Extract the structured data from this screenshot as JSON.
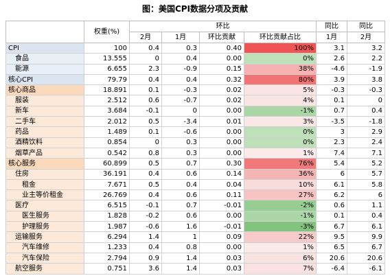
{
  "title": "图：美国CPI数据分项及贡献",
  "table": {
    "header": [
      [
        "权重(%)",
        "环比",
        "同比",
        "同比"
      ],
      [
        "2月",
        "1月",
        "环比贡献",
        "环比贡献占比",
        "1月",
        "2月"
      ]
    ],
    "rows": [
      [
        "CPI",
        "100",
        "0.4",
        "0.3",
        "0.40",
        "100%",
        "3.1",
        "3.2"
      ],
      [
        "食品",
        "13.555",
        "0",
        "0.4",
        "0.00",
        "0%",
        "2.6",
        "2.2"
      ],
      [
        "能源",
        "6.655",
        "2.3",
        "-0.9",
        "0.15",
        "38%",
        "-4.6",
        "-1.9"
      ],
      [
        "核心CPI",
        "79.79",
        "0.4",
        "0.4",
        "0.32",
        "80%",
        "3.9",
        "3.8"
      ],
      [
        "核心商品",
        "18.891",
        "0.1",
        "-0.3",
        "0.02",
        "5%",
        "-0.3",
        "-0.3"
      ],
      [
        "服装",
        "2.512",
        "0.6",
        "-0.7",
        "0.02",
        "4%",
        "0.1",
        "0"
      ],
      [
        "新车",
        "3.684",
        "-0.1",
        "0",
        "0.00",
        "-1%",
        "0.7",
        "0.4"
      ],
      [
        "二手车",
        "2.012",
        "0.5",
        "-3.4",
        "0.01",
        "3%",
        "-3.5",
        "-1.8"
      ],
      [
        "药品",
        "1.489",
        "0.1",
        "-0.6",
        "0.00",
        "0%",
        "3",
        "2.9"
      ],
      [
        "酒精饮料",
        "0.854",
        "0",
        "0.3",
        "0.00",
        "0%",
        "2.3",
        "2.4"
      ],
      [
        "烟草产品",
        "0.542",
        "0.8",
        "0.3",
        "0.00",
        "1%",
        "7.4",
        "7.1"
      ],
      [
        "核心服务",
        "60.899",
        "0.5",
        "0.7",
        "0.30",
        "76%",
        "5.4",
        "5.2"
      ],
      [
        "住房",
        "36.191",
        "0.4",
        "0.6",
        "0.14",
        "36%",
        "6",
        "5.7"
      ],
      [
        "租金",
        "7.671",
        "0.5",
        "0.4",
        "0.04",
        "10%",
        "6.1",
        "5.8"
      ],
      [
        "业主等价租金",
        "26.769",
        "0.4",
        "0.6",
        "0.11",
        "27%",
        "6.2",
        "6"
      ],
      [
        "医疗",
        "6.515",
        "-0.1",
        "0.7",
        "-0.01",
        "-2%",
        "0.6",
        "1.1"
      ],
      [
        "医生服务",
        "1.828",
        "-0.2",
        "0.6",
        "0.00",
        "-1%",
        "0.1",
        "0.4"
      ],
      [
        "护理服务",
        "1.987",
        "-0.6",
        "1.6",
        "-0.01",
        "-3%",
        "6.7",
        "6.1"
      ],
      [
        "运输服务",
        "6.294",
        "1.4",
        "1",
        "0.09",
        "22%",
        "9.5",
        "9.9"
      ],
      [
        "汽车维修",
        "1.233",
        "0.4",
        "0.8",
        "0.00",
        "1%",
        "6.5",
        "6.7"
      ],
      [
        "汽车保险",
        "2.794",
        "0.9",
        "1.4",
        "0.03",
        "6%",
        "20.6",
        "20.6"
      ],
      [
        "航空服务",
        "0.751",
        "3.6",
        "1.4",
        "0.03",
        "7%",
        "-6.4",
        "-6.1"
      ]
    ]
  }
}
